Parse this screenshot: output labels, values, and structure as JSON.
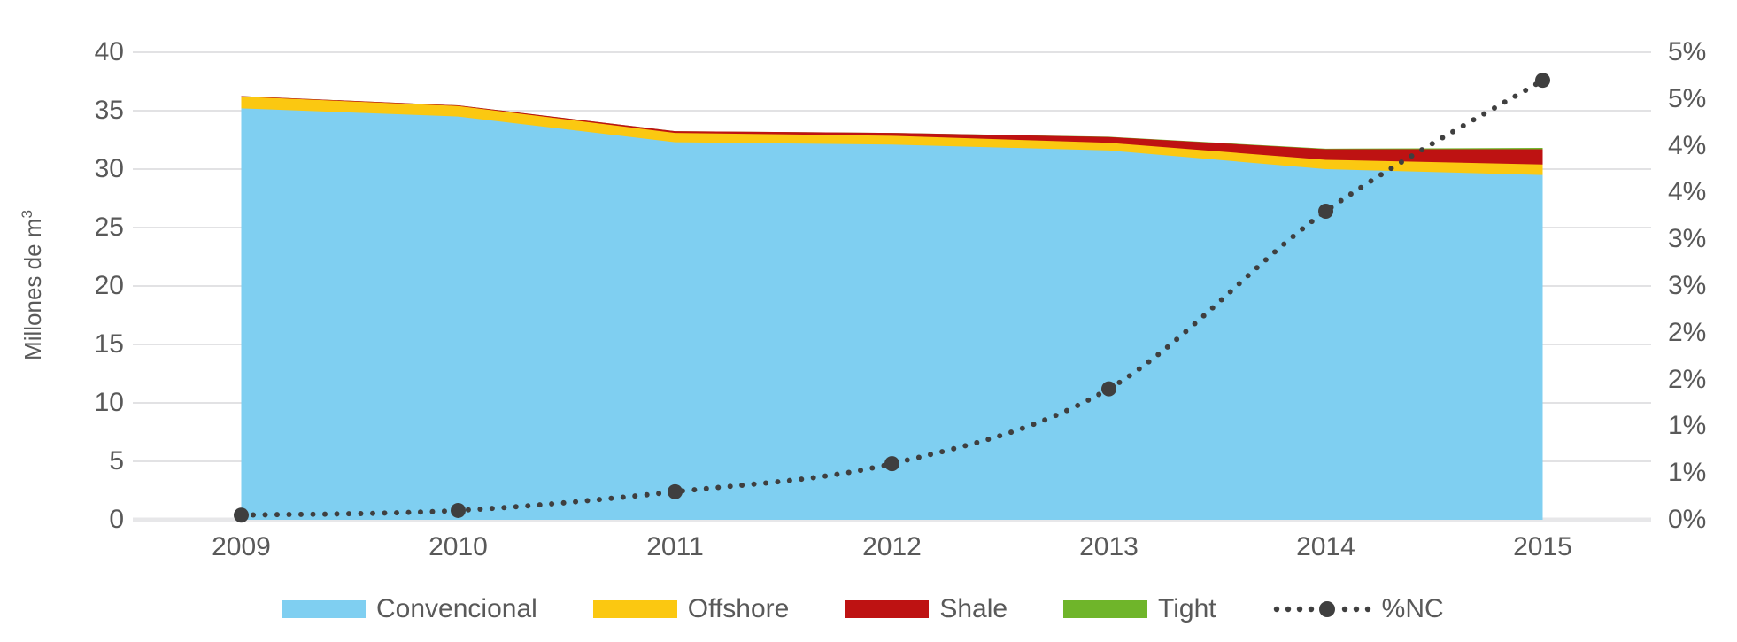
{
  "chart_data": {
    "type": "area",
    "stacked": true,
    "title": "",
    "categories": [
      "2009",
      "2010",
      "2011",
      "2012",
      "2013",
      "2014",
      "2015"
    ],
    "series": [
      {
        "name": "Convencional",
        "color": "#7FCFF1",
        "values": [
          35.2,
          34.5,
          32.3,
          32.1,
          31.6,
          30.0,
          29.5
        ]
      },
      {
        "name": "Offshore",
        "color": "#FBC811",
        "values": [
          1.0,
          0.9,
          0.8,
          0.75,
          0.65,
          0.8,
          0.9
        ]
      },
      {
        "name": "Shale",
        "color": "#BE1212",
        "values": [
          0.05,
          0.05,
          0.15,
          0.25,
          0.5,
          0.9,
          1.3
        ]
      },
      {
        "name": "Tight",
        "color": "#6FB52A",
        "values": [
          0.0,
          0.0,
          0.0,
          0.0,
          0.02,
          0.05,
          0.12
        ]
      }
    ],
    "line_series": {
      "name": "%NC",
      "color": "#3F3F3F",
      "style": "dotted",
      "axis": "right",
      "values": [
        0.05,
        0.1,
        0.3,
        0.6,
        1.4,
        3.3,
        4.7
      ]
    },
    "left_axis": {
      "label": "Millones de m³",
      "min": 0,
      "max": 40,
      "step": 5,
      "tick_labels_top_to_bottom": [
        "40",
        "35",
        "30",
        "25",
        "20",
        "15",
        "10",
        "5",
        "0"
      ]
    },
    "right_axis": {
      "min": 0,
      "max": 5,
      "step": 0.5,
      "unit": "%",
      "tick_labels_top_to_bottom": [
        "5%",
        "5%",
        "4%",
        "4%",
        "3%",
        "3%",
        "2%",
        "2%",
        "1%",
        "1%",
        "0%"
      ]
    },
    "legend_position": "bottom",
    "grid": true,
    "colors": {
      "text": "#595959",
      "gridline": "#E2E2E4",
      "axis_line": "#E7E7E9",
      "dot_line": "#3F3F3F"
    }
  },
  "ytitle": {
    "text": "Millones de m",
    "sup": "3"
  }
}
